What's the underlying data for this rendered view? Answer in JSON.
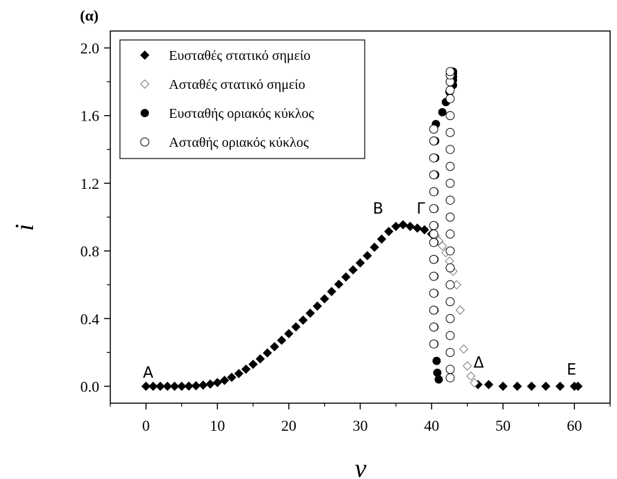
{
  "chart_data": {
    "type": "scatter",
    "panel_label": "(α)",
    "xlabel": "v",
    "ylabel": "i",
    "xlim": [
      -5,
      65
    ],
    "ylim": [
      -0.1,
      2.1
    ],
    "xticks": [
      0,
      10,
      20,
      30,
      40,
      50,
      60
    ],
    "yticks": [
      0.0,
      0.4,
      0.8,
      1.2,
      1.6,
      2.0
    ],
    "xtick_labels": [
      "0",
      "10",
      "20",
      "30",
      "40",
      "50",
      "60"
    ],
    "ytick_labels": [
      "0.0",
      "0.4",
      "0.8",
      "1.2",
      "1.6",
      "2.0"
    ],
    "legend_position": "top-left",
    "grid": false,
    "series": [
      {
        "name": "Ευσταθές στατικό σημείο",
        "marker": "diamond-filled",
        "x": [
          0,
          1,
          2,
          3,
          4,
          5,
          6,
          7,
          8,
          9,
          10,
          11,
          12,
          13,
          14,
          15,
          16,
          17,
          18,
          19,
          20,
          21,
          22,
          23,
          24,
          25,
          26,
          27,
          28,
          29,
          30,
          31,
          32,
          33,
          34,
          35,
          36,
          37,
          38,
          39,
          40,
          46.5,
          48,
          50,
          52,
          54,
          56,
          58,
          60,
          60.5
        ],
        "y": [
          0.0,
          0.0,
          0.0,
          0.0,
          0.0,
          0.0,
          0.001,
          0.003,
          0.007,
          0.013,
          0.022,
          0.035,
          0.053,
          0.075,
          0.101,
          0.13,
          0.162,
          0.197,
          0.234,
          0.272,
          0.311,
          0.351,
          0.391,
          0.432,
          0.474,
          0.517,
          0.56,
          0.603,
          0.646,
          0.688,
          0.729,
          0.772,
          0.822,
          0.87,
          0.915,
          0.945,
          0.955,
          0.945,
          0.935,
          0.925,
          0.9,
          0.01,
          0.01,
          0.0,
          0.0,
          0.0,
          0.0,
          0.0,
          0.0,
          0.0
        ]
      },
      {
        "name": "Ασταθές στατικό σημείο",
        "marker": "diamond-open",
        "x": [
          40.5,
          41,
          41.5,
          42,
          42.5,
          43,
          43.5,
          44,
          44.5,
          45,
          45.5,
          46
        ],
        "y": [
          0.89,
          0.86,
          0.83,
          0.79,
          0.74,
          0.68,
          0.6,
          0.45,
          0.22,
          0.12,
          0.06,
          0.02
        ]
      },
      {
        "name": "Ευσταθής οριακός κύκλος",
        "marker": "circle-filled",
        "x": [
          40.4,
          40.4,
          40.4,
          40.4,
          40.4,
          40.4,
          40.4,
          40.4,
          40.4,
          40.4,
          40.5,
          40.5,
          40.5,
          40.6,
          40.7,
          40.8,
          41.0,
          41.5,
          42.0,
          42.5,
          43.0,
          43.0,
          43.0,
          43.0,
          43.0
        ],
        "y": [
          0.25,
          0.35,
          0.45,
          0.55,
          0.65,
          0.75,
          0.85,
          0.95,
          1.05,
          1.15,
          1.25,
          1.35,
          1.45,
          1.55,
          0.15,
          0.08,
          0.04,
          1.62,
          1.68,
          1.74,
          1.78,
          1.81,
          1.83,
          1.85,
          1.86
        ]
      },
      {
        "name": "Ασταθής οριακός κύκλος",
        "marker": "circle-open",
        "x": [
          40.3,
          40.3,
          40.3,
          40.3,
          40.3,
          40.3,
          40.3,
          40.3,
          40.3,
          40.3,
          40.3,
          40.3,
          40.3,
          40.3,
          40.3,
          42.6,
          42.6,
          42.6,
          42.6,
          42.6,
          42.6,
          42.6,
          42.6,
          42.6,
          42.6,
          42.6,
          42.6,
          42.6,
          42.6,
          42.6,
          42.6,
          42.6,
          42.6,
          42.6,
          42.6,
          42.6,
          42.6
        ],
        "y": [
          0.25,
          0.35,
          0.45,
          0.55,
          0.65,
          0.75,
          0.85,
          0.95,
          1.05,
          1.15,
          1.25,
          1.35,
          1.45,
          1.52,
          0.9,
          0.05,
          0.1,
          0.2,
          0.3,
          0.4,
          0.5,
          0.6,
          0.7,
          0.8,
          0.9,
          1.0,
          1.1,
          1.2,
          1.3,
          1.4,
          1.5,
          1.6,
          1.7,
          1.75,
          1.8,
          1.84,
          1.86
        ]
      }
    ],
    "annotations": [
      {
        "text": "A",
        "x": 0.3,
        "y": 0.05
      },
      {
        "text": "B",
        "x": 32.5,
        "y": 1.02
      },
      {
        "text": "Γ",
        "x": 38.5,
        "y": 1.02
      },
      {
        "text": "Δ",
        "x": 46.6,
        "y": 0.11
      },
      {
        "text": "E",
        "x": 59.6,
        "y": 0.07
      }
    ]
  }
}
